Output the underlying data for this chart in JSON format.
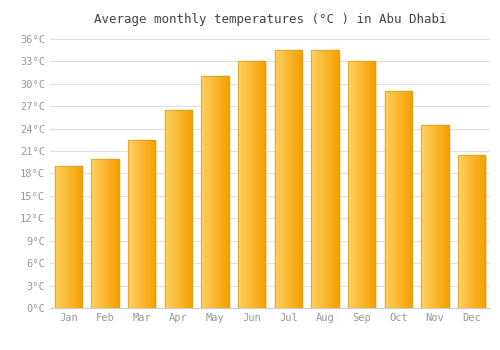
{
  "title": "Average monthly temperatures (°C ) in Abu Dhabi",
  "months": [
    "Jan",
    "Feb",
    "Mar",
    "Apr",
    "May",
    "Jun",
    "Jul",
    "Aug",
    "Sep",
    "Oct",
    "Nov",
    "Dec"
  ],
  "temperatures": [
    19.0,
    20.0,
    22.5,
    26.5,
    31.0,
    33.0,
    34.5,
    34.5,
    33.0,
    29.0,
    24.5,
    20.5
  ],
  "bar_color_main": "#FFC020",
  "bar_color_left": "#FFD060",
  "bar_color_right": "#F5A000",
  "bar_edge_color": "#C8A030",
  "ylim": [
    0,
    37
  ],
  "yticks": [
    0,
    3,
    6,
    9,
    12,
    15,
    18,
    21,
    24,
    27,
    30,
    33,
    36
  ],
  "ytick_labels": [
    "0°C",
    "3°C",
    "6°C",
    "9°C",
    "12°C",
    "15°C",
    "18°C",
    "21°C",
    "24°C",
    "27°C",
    "30°C",
    "33°C",
    "36°C"
  ],
  "background_color": "#ffffff",
  "plot_bg_color": "#ffffff",
  "grid_color": "#e0e0e0",
  "title_fontsize": 9,
  "tick_fontsize": 7.5,
  "tick_color": "#999999",
  "font_family": "monospace",
  "bar_width": 0.75
}
